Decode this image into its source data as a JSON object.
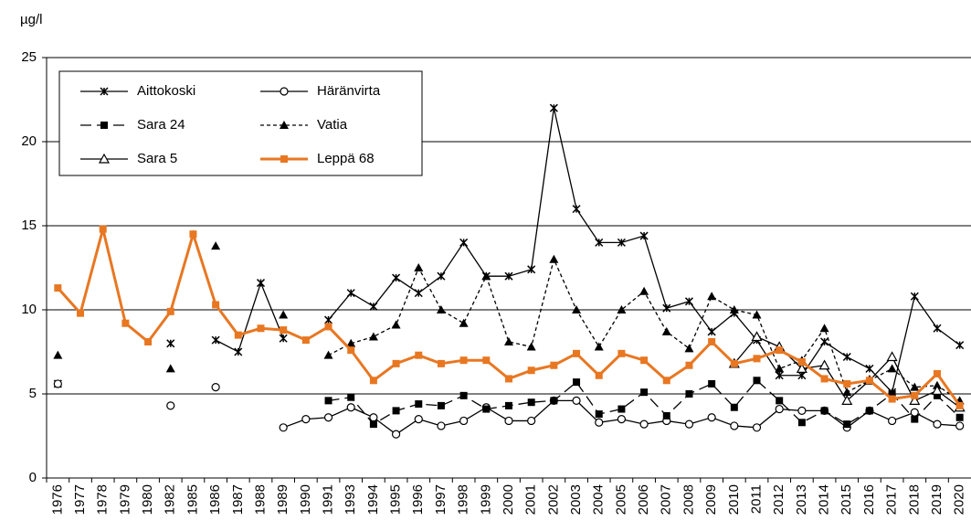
{
  "chart_data": {
    "type": "line",
    "ylabel": "µg/l",
    "categories": [
      "1976",
      "1977",
      "1978",
      "1979",
      "1980",
      "1982",
      "1985",
      "1986",
      "1987",
      "1988",
      "1989",
      "1990",
      "1991",
      "1993",
      "1994",
      "1995",
      "1996",
      "1997",
      "1998",
      "1999",
      "2000",
      "2001",
      "2002",
      "2003",
      "2004",
      "2005",
      "2006",
      "2007",
      "2008",
      "2009",
      "2010",
      "2011",
      "2012",
      "2013",
      "2014",
      "2015",
      "2016",
      "2017",
      "2018",
      "2019",
      "2020"
    ],
    "ylim": [
      0,
      25
    ],
    "yticks": [
      0,
      5,
      10,
      15,
      20,
      25
    ],
    "grid": true,
    "legend": "top-left",
    "series": [
      {
        "name": "Aittokoski",
        "color": "#000000",
        "dash": "solid",
        "marker": "x",
        "values": [
          5.6,
          null,
          null,
          null,
          null,
          8.0,
          null,
          8.2,
          7.5,
          11.6,
          8.3,
          null,
          9.4,
          11.0,
          10.2,
          11.9,
          11.0,
          12.0,
          14.0,
          12.0,
          12.0,
          12.4,
          22.0,
          16.0,
          14.0,
          14.0,
          14.4,
          10.1,
          10.5,
          8.7,
          9.8,
          8.2,
          6.1,
          6.1,
          8.1,
          7.2,
          6.5,
          5.1,
          10.8,
          8.9,
          7.9
        ]
      },
      {
        "name": "Häränvirta",
        "color": "#000000",
        "dash": "solid",
        "marker": "circle-open",
        "values": [
          5.6,
          null,
          null,
          null,
          null,
          4.3,
          null,
          5.4,
          null,
          null,
          3.0,
          3.5,
          3.6,
          4.2,
          3.6,
          2.6,
          3.5,
          3.1,
          3.4,
          4.2,
          3.4,
          3.4,
          4.6,
          4.6,
          3.3,
          3.5,
          3.2,
          3.4,
          3.2,
          3.6,
          3.1,
          3.0,
          4.1,
          4.0,
          4.0,
          3.0,
          4.0,
          3.4,
          3.9,
          3.2,
          3.1
        ]
      },
      {
        "name": "Sara 24",
        "color": "#000000",
        "dash": "long",
        "marker": "square",
        "values": [
          null,
          null,
          null,
          null,
          null,
          null,
          null,
          null,
          null,
          null,
          null,
          null,
          4.6,
          4.8,
          3.2,
          4.0,
          4.4,
          4.3,
          4.9,
          4.1,
          4.3,
          4.5,
          4.6,
          5.7,
          3.8,
          4.1,
          5.1,
          3.7,
          5.0,
          5.6,
          4.2,
          5.8,
          4.6,
          3.3,
          4.0,
          3.2,
          4.0,
          5.0,
          3.5,
          4.9,
          3.6
        ]
      },
      {
        "name": "Vatia",
        "color": "#000000",
        "dash": "short",
        "marker": "triangle",
        "values": [
          7.3,
          null,
          null,
          null,
          null,
          6.5,
          null,
          13.8,
          null,
          null,
          9.7,
          null,
          7.3,
          8.0,
          8.4,
          9.1,
          12.5,
          10.0,
          9.2,
          12.0,
          8.1,
          7.8,
          13.0,
          10.0,
          7.8,
          10.0,
          11.1,
          8.7,
          7.7,
          10.8,
          10.0,
          9.7,
          6.5,
          7.0,
          8.9,
          5.1,
          5.8,
          6.5,
          5.4,
          5.5,
          4.6
        ]
      },
      {
        "name": "Sara 5",
        "color": "#000000",
        "dash": "solid",
        "marker": "triangle-open",
        "values": [
          null,
          null,
          null,
          null,
          null,
          null,
          null,
          null,
          null,
          null,
          null,
          null,
          null,
          null,
          null,
          null,
          null,
          null,
          null,
          null,
          null,
          null,
          null,
          null,
          null,
          null,
          null,
          null,
          null,
          null,
          6.8,
          8.4,
          7.8,
          6.5,
          6.7,
          4.6,
          5.8,
          7.2,
          4.6,
          5.2,
          4.2
        ]
      },
      {
        "name": "Leppä 68",
        "color": "#e87722",
        "dash": "solid",
        "marker": "square",
        "values": [
          11.3,
          9.8,
          14.8,
          9.2,
          8.1,
          9.9,
          14.5,
          10.3,
          8.5,
          8.9,
          8.8,
          8.2,
          9.0,
          7.6,
          5.8,
          6.8,
          7.3,
          6.8,
          7.0,
          7.0,
          5.9,
          6.4,
          6.7,
          7.4,
          6.1,
          7.4,
          7.0,
          5.8,
          6.7,
          8.1,
          6.8,
          7.1,
          7.6,
          6.9,
          5.9,
          5.6,
          5.8,
          4.7,
          4.9,
          6.2,
          4.3
        ]
      }
    ]
  }
}
